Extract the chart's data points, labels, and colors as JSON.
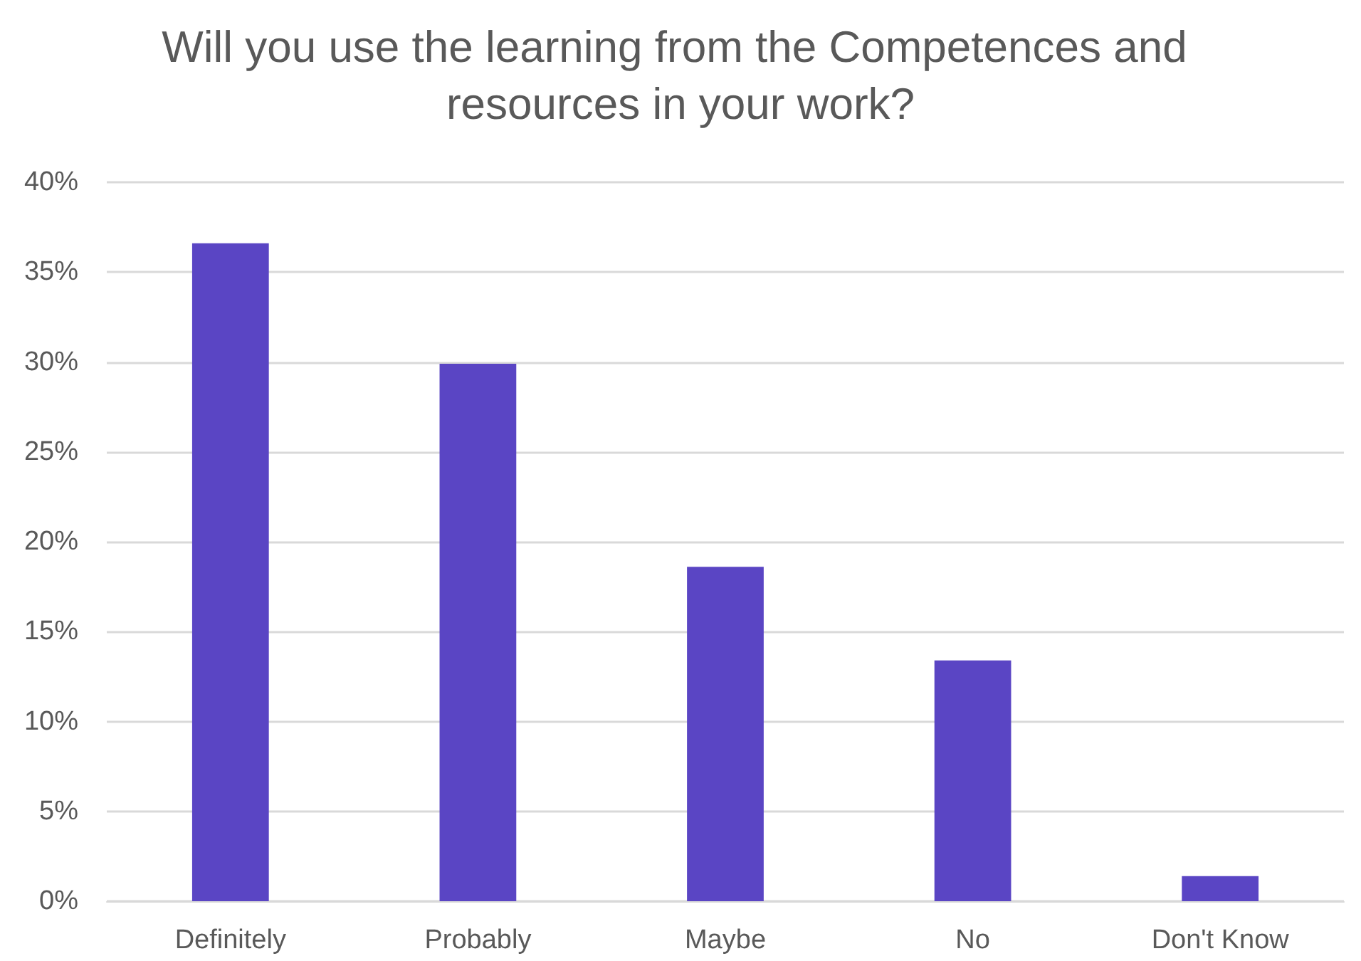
{
  "chart_data": {
    "type": "bar",
    "title": "Will you use the learning from the Competences and resources in your work?",
    "categories": [
      "Definitely",
      "Probably",
      "Maybe",
      "No",
      "Don't Know"
    ],
    "values": [
      36.6,
      29.9,
      18.6,
      13.4,
      1.4
    ],
    "color": "#5a45c4",
    "ylim": [
      0,
      40
    ],
    "yticks": [
      {
        "value": 0,
        "label": "0%"
      },
      {
        "value": 5,
        "label": "5%"
      },
      {
        "value": 10,
        "label": "10%"
      },
      {
        "value": 15,
        "label": "15%"
      },
      {
        "value": 20,
        "label": "20%"
      },
      {
        "value": 25,
        "label": "25%"
      },
      {
        "value": 30,
        "label": "30%"
      },
      {
        "value": 35,
        "label": "35%"
      },
      {
        "value": 40,
        "label": "40%"
      }
    ],
    "grid": true
  }
}
